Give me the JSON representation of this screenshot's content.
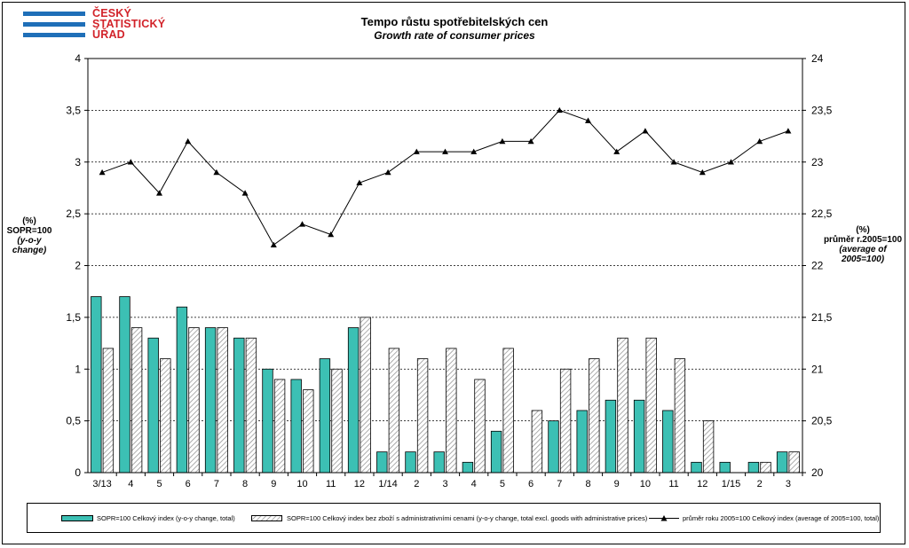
{
  "header": {
    "logo_lines": [
      "ČESKÝ",
      "STATISTICKÝ",
      "ÚŘAD"
    ],
    "title": "Tempo růstu spotřebitelských cen",
    "subtitle": "Growth rate of consumer prices"
  },
  "axes": {
    "left_label_lines": [
      "(%)",
      "SOPR=100",
      "(y-o-y change)"
    ],
    "right_label_lines": [
      "(%)",
      "průměr r.2005=100",
      "(average of 2005=100)"
    ],
    "left_ticks": [
      "0",
      "0,5",
      "1",
      "1,5",
      "2",
      "2,5",
      "3",
      "3,5",
      "4"
    ],
    "right_ticks": [
      "20",
      "20,5",
      "21",
      "21,5",
      "22",
      "22,5",
      "23",
      "23,5",
      "24"
    ]
  },
  "colors": {
    "bar_total": "#3cc0b4",
    "bar_excl_hatch": "#8a8a8a",
    "line": "#000000",
    "logo_blue": "#1f6fb8",
    "logo_red": "#d2232a"
  },
  "chart_data": {
    "type": "bar",
    "categories": [
      "3/13",
      "4",
      "5",
      "6",
      "7",
      "8",
      "9",
      "10",
      "11",
      "12",
      "1/14",
      "2",
      "3",
      "4",
      "5",
      "6",
      "7",
      "8",
      "9",
      "10",
      "11",
      "12",
      "1/15",
      "2",
      "3"
    ],
    "series": [
      {
        "name": "SOPR=100  Celkový  index  (y-o-y  change,  total)",
        "axis": "left",
        "type": "bar",
        "values": [
          1.7,
          1.7,
          1.3,
          1.6,
          1.4,
          1.3,
          1.0,
          0.9,
          1.1,
          1.4,
          0.2,
          0.2,
          0.2,
          0.1,
          0.4,
          0.0,
          0.5,
          0.6,
          0.7,
          0.7,
          0.6,
          0.1,
          0.1,
          0.1,
          0.2
        ]
      },
      {
        "name": "SOPR=100  Celkový  index  bez  zboží  s  administrativními  cenami  (y-o-y  change,  total  excl.  goods  with  administrative  prices)",
        "axis": "left",
        "type": "bar",
        "values": [
          1.2,
          1.4,
          1.1,
          1.4,
          1.4,
          1.3,
          0.9,
          0.8,
          1.0,
          1.5,
          1.2,
          1.1,
          1.2,
          0.9,
          1.2,
          0.6,
          1.0,
          1.1,
          1.3,
          1.3,
          1.1,
          0.5,
          0.0,
          0.1,
          0.2
        ]
      },
      {
        "name": "průměr  roku  2005=100   Celkový  index  (average  of  2005=100,  total)",
        "axis": "right",
        "type": "line",
        "values": [
          22.9,
          23.0,
          22.7,
          23.2,
          22.9,
          22.7,
          22.2,
          22.4,
          22.3,
          22.8,
          22.9,
          23.1,
          23.1,
          23.1,
          23.2,
          23.2,
          23.5,
          23.4,
          23.1,
          23.3,
          23.0,
          22.9,
          23.0,
          23.2,
          23.3
        ]
      }
    ],
    "ylim": [
      0,
      4
    ],
    "y2lim": [
      20,
      24
    ],
    "grid": true,
    "legend_position": "bottom"
  }
}
